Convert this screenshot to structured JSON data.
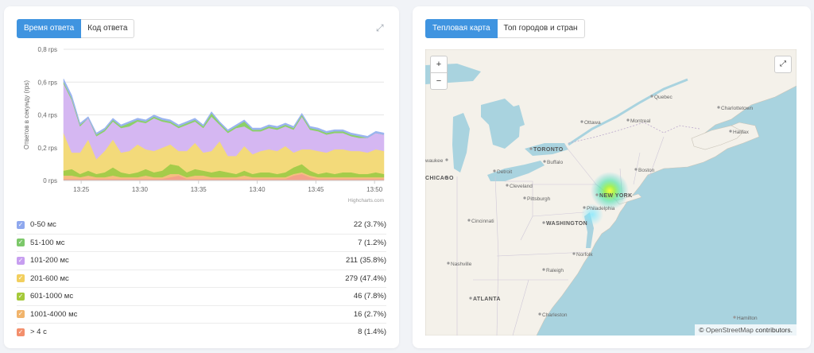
{
  "left_panel": {
    "tabs": [
      {
        "label": "Время ответа",
        "active": true
      },
      {
        "label": "Код ответа",
        "active": false
      }
    ],
    "expand_icon": "expand-icon",
    "credit": "Highcharts.com"
  },
  "chart_data": {
    "type": "area",
    "stacked": true,
    "title": "",
    "ylabel": "Ответов в секунду (rps)",
    "ylim": [
      0,
      0.8
    ],
    "y_ticks": [
      "0 rps",
      "0,2 rps",
      "0,4 rps",
      "0,6 rps",
      "0,8 rps"
    ],
    "x_ticks": [
      "13:25",
      "13:30",
      "13:35",
      "13:40",
      "13:45",
      "13:50"
    ],
    "x_minutes": [
      23.5,
      24.2,
      24.9,
      25.6,
      26.3,
      27,
      27.7,
      28.4,
      29.1,
      29.8,
      30.5,
      31.2,
      31.9,
      32.6,
      33.3,
      34,
      34.7,
      35.4,
      36.1,
      36.8,
      37.5,
      38.2,
      38.9,
      39.6,
      40.3,
      41,
      41.7,
      42.4,
      43.1,
      43.8,
      44.5,
      45.2,
      45.9,
      46.6,
      47.3,
      48,
      48.7,
      49.4,
      50.1,
      50.8
    ],
    "series": [
      {
        "name": "> 4 с",
        "color": "#f4a28a",
        "values": [
          0.01,
          0.01,
          0.01,
          0.01,
          0.01,
          0.01,
          0.01,
          0.01,
          0.01,
          0.01,
          0.01,
          0.01,
          0.01,
          0.02,
          0.03,
          0.01,
          0.01,
          0.01,
          0.01,
          0.01,
          0.01,
          0.01,
          0.01,
          0.01,
          0.01,
          0.01,
          0.01,
          0.01,
          0.03,
          0.04,
          0.02,
          0.01,
          0.01,
          0.01,
          0.01,
          0.01,
          0.01,
          0.01,
          0.01,
          0.01
        ]
      },
      {
        "name": "1001-4000 мс",
        "color": "#f5be7f",
        "values": [
          0.02,
          0.02,
          0.01,
          0.02,
          0.01,
          0.01,
          0.02,
          0.01,
          0.01,
          0.01,
          0.02,
          0.01,
          0.01,
          0.02,
          0.01,
          0.01,
          0.02,
          0.02,
          0.01,
          0.01,
          0.01,
          0.01,
          0.02,
          0.01,
          0.01,
          0.01,
          0.01,
          0.01,
          0.01,
          0.01,
          0.01,
          0.01,
          0.01,
          0.01,
          0.01,
          0.01,
          0.01,
          0.01,
          0.01,
          0.01
        ]
      },
      {
        "name": "601-1000 мс",
        "color": "#a5cc4a",
        "values": [
          0.03,
          0.04,
          0.02,
          0.03,
          0.02,
          0.03,
          0.05,
          0.03,
          0.02,
          0.03,
          0.04,
          0.03,
          0.04,
          0.06,
          0.05,
          0.03,
          0.04,
          0.03,
          0.03,
          0.04,
          0.03,
          0.02,
          0.03,
          0.02,
          0.03,
          0.03,
          0.02,
          0.03,
          0.04,
          0.05,
          0.03,
          0.02,
          0.03,
          0.02,
          0.03,
          0.03,
          0.02,
          0.02,
          0.03,
          0.02
        ]
      },
      {
        "name": "201-600 мс",
        "color": "#f3da7a",
        "values": [
          0.23,
          0.1,
          0.13,
          0.19,
          0.09,
          0.13,
          0.17,
          0.12,
          0.14,
          0.17,
          0.12,
          0.13,
          0.14,
          0.12,
          0.09,
          0.13,
          0.16,
          0.11,
          0.13,
          0.18,
          0.1,
          0.11,
          0.15,
          0.12,
          0.13,
          0.14,
          0.14,
          0.16,
          0.09,
          0.09,
          0.13,
          0.14,
          0.12,
          0.15,
          0.14,
          0.13,
          0.14,
          0.13,
          0.14,
          0.14
        ]
      },
      {
        "name": "101-200 мс",
        "color": "#d5b7f2",
        "values": [
          0.3,
          0.32,
          0.16,
          0.13,
          0.14,
          0.12,
          0.11,
          0.15,
          0.15,
          0.14,
          0.16,
          0.2,
          0.16,
          0.13,
          0.14,
          0.16,
          0.13,
          0.15,
          0.21,
          0.1,
          0.14,
          0.17,
          0.12,
          0.14,
          0.12,
          0.13,
          0.13,
          0.12,
          0.14,
          0.2,
          0.12,
          0.12,
          0.11,
          0.1,
          0.1,
          0.09,
          0.08,
          0.09,
          0.1,
          0.1
        ]
      },
      {
        "name": "51-100 мс",
        "color": "#8cd068",
        "values": [
          0.01,
          0.01,
          0.01,
          0.0,
          0.01,
          0.01,
          0.01,
          0.01,
          0.02,
          0.01,
          0.01,
          0.01,
          0.01,
          0.01,
          0.01,
          0.01,
          0.01,
          0.01,
          0.02,
          0.01,
          0.01,
          0.01,
          0.03,
          0.01,
          0.01,
          0.01,
          0.01,
          0.01,
          0.01,
          0.01,
          0.01,
          0.01,
          0.01,
          0.01,
          0.01,
          0.01,
          0.01,
          0.0,
          0.0,
          0.0
        ]
      },
      {
        "name": "0-50 мс",
        "color": "#9ab4f0",
        "values": [
          0.02,
          0.02,
          0.01,
          0.01,
          0.01,
          0.01,
          0.01,
          0.01,
          0.01,
          0.01,
          0.01,
          0.01,
          0.01,
          0.01,
          0.01,
          0.01,
          0.01,
          0.01,
          0.01,
          0.01,
          0.01,
          0.01,
          0.01,
          0.01,
          0.01,
          0.01,
          0.01,
          0.01,
          0.01,
          0.01,
          0.01,
          0.01,
          0.01,
          0.01,
          0.01,
          0.01,
          0.01,
          0.01,
          0.01,
          0.01
        ]
      }
    ]
  },
  "legend": [
    {
      "label": "0-50 мс",
      "value": "22 (3.7%)",
      "color": "#8fa8ee"
    },
    {
      "label": "51-100 мс",
      "value": "7 (1.2%)",
      "color": "#7cc86a"
    },
    {
      "label": "101-200 мс",
      "value": "211 (35.8%)",
      "color": "#c79ef0"
    },
    {
      "label": "201-600 мс",
      "value": "279 (47.4%)",
      "color": "#f2cf5e"
    },
    {
      "label": "601-1000 мс",
      "value": "46 (7.8%)",
      "color": "#a5c93a"
    },
    {
      "label": "1001-4000 мс",
      "value": "16 (2.7%)",
      "color": "#f1b46c"
    },
    {
      "label": "> 4 с",
      "value": "8 (1.4%)",
      "color": "#f38f6c"
    }
  ],
  "right_panel": {
    "tabs": [
      {
        "label": "Тепловая карта",
        "active": true
      },
      {
        "label": "Топ городов и стран",
        "active": false
      }
    ],
    "map": {
      "zoom_in": "+",
      "zoom_out": "−",
      "expand_glyph": "⤢",
      "attribution_symbol": "©",
      "attribution_link": "OpenStreetMap",
      "attribution_text": "contributors.",
      "cities": [
        {
          "name": "Quebec",
          "style": "normal"
        },
        {
          "name": "Charlottetown",
          "style": "normal"
        },
        {
          "name": "Ottawa",
          "style": "normal"
        },
        {
          "name": "Montreal",
          "style": "normal"
        },
        {
          "name": "Halifax",
          "style": "normal"
        },
        {
          "name": "TORONTO",
          "style": "major"
        },
        {
          "name": "Buffalo",
          "style": "normal"
        },
        {
          "name": "waukee",
          "style": "normal"
        },
        {
          "name": "Detroit",
          "style": "normal"
        },
        {
          "name": "Boston",
          "style": "normal"
        },
        {
          "name": "CHICAGO",
          "style": "major"
        },
        {
          "name": "Cleveland",
          "style": "normal"
        },
        {
          "name": "NEW YORK",
          "style": "major"
        },
        {
          "name": "Pittsburgh",
          "style": "normal"
        },
        {
          "name": "Philadelphia",
          "style": "normal"
        },
        {
          "name": "WASHINGTON",
          "style": "major"
        },
        {
          "name": "Cincinnati",
          "style": "normal"
        },
        {
          "name": "Norfolk",
          "style": "normal"
        },
        {
          "name": "Nashville",
          "style": "normal"
        },
        {
          "name": "Raleigh",
          "style": "normal"
        },
        {
          "name": "ATLANTA",
          "style": "major"
        },
        {
          "name": "Charleston",
          "style": "normal"
        },
        {
          "name": "Hamilton",
          "style": "normal"
        }
      ]
    }
  }
}
